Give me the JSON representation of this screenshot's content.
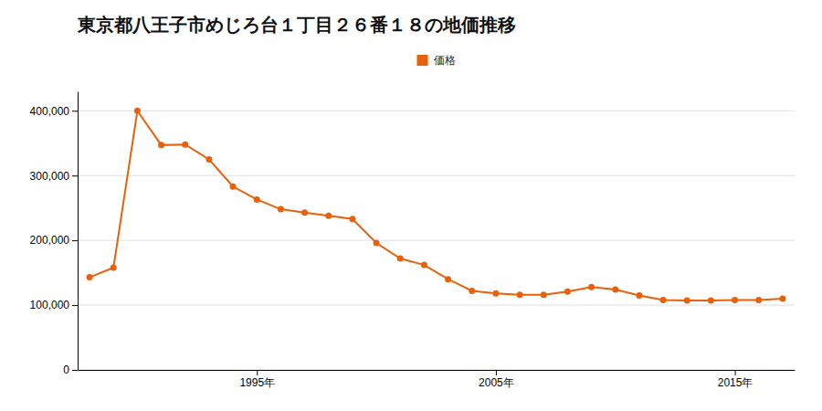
{
  "chart_data": {
    "type": "line",
    "title": "東京都八王子市めじろ台１丁目２６番１８の地価推移",
    "x": [
      1988,
      1989,
      1990,
      1991,
      1992,
      1993,
      1994,
      1995,
      1996,
      1997,
      1998,
      1999,
      2000,
      2001,
      2002,
      2003,
      2004,
      2005,
      2006,
      2007,
      2008,
      2009,
      2010,
      2011,
      2012,
      2013,
      2014,
      2015,
      2016,
      2017
    ],
    "series": [
      {
        "name": "価格",
        "color": "#E8610A",
        "marker": "circle",
        "values": [
          143000,
          158000,
          400000,
          347000,
          348000,
          325000,
          283000,
          263000,
          248000,
          243000,
          238000,
          233000,
          196000,
          172000,
          162000,
          140000,
          122000,
          118000,
          116000,
          116000,
          121000,
          128000,
          124000,
          115000,
          108000,
          107000,
          107000,
          108000,
          108000,
          110000
        ]
      }
    ],
    "xlim": [
      1987.5,
      2017.5
    ],
    "xticks": [
      {
        "value": 1995,
        "label": "1995年"
      },
      {
        "value": 2005,
        "label": "2005年"
      },
      {
        "value": 2015,
        "label": "2015年"
      }
    ],
    "ylim": [
      0,
      430000
    ],
    "yticks": [
      0,
      {
        "value": 100000,
        "label": "100,000"
      },
      {
        "value": 200000,
        "label": "200,000"
      },
      {
        "value": 300000,
        "label": "300,000"
      },
      {
        "value": 400000,
        "label": "400,000"
      }
    ],
    "grid": true,
    "legend": "top"
  }
}
